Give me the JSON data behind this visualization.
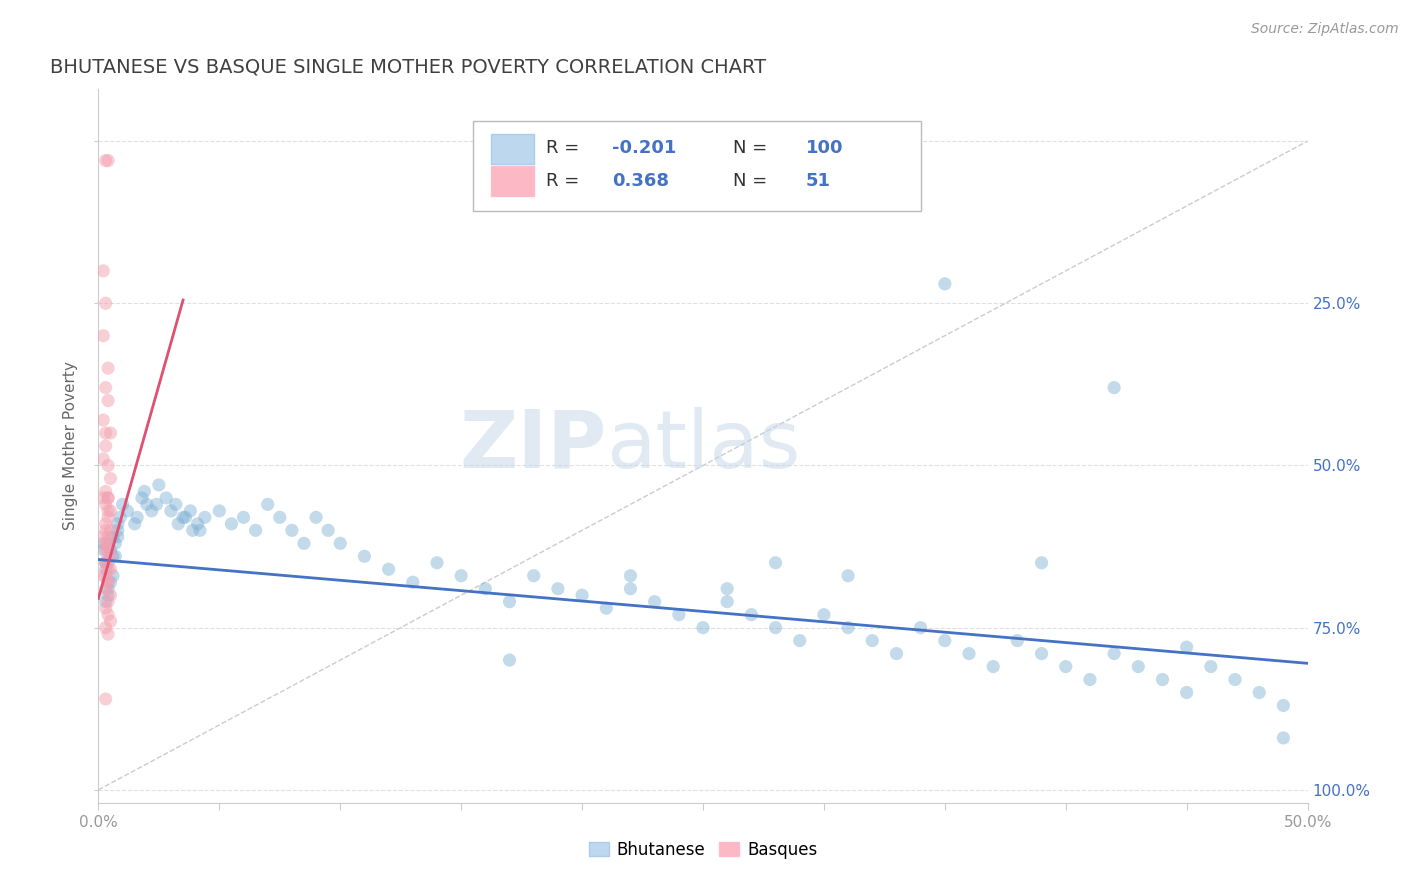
{
  "title": "BHUTANESE VS BASQUE SINGLE MOTHER POVERTY CORRELATION CHART",
  "source_text": "Source: ZipAtlas.com",
  "ylabel": "Single Mother Poverty",
  "x_tick_labels": [
    "0.0%",
    "",
    "",
    "",
    "",
    "",
    "",
    "",
    "",
    "",
    "50.0%"
  ],
  "y_tick_labels_right": [
    "100.0%",
    "75.0%",
    "50.0%",
    "25.0%"
  ],
  "xlim": [
    0.0,
    0.5
  ],
  "ylim": [
    -0.02,
    1.08
  ],
  "blue_R": -0.201,
  "blue_N": 100,
  "pink_R": 0.368,
  "pink_N": 51,
  "blue_color": "#7BAFD4",
  "pink_color": "#F4A0B0",
  "blue_line_color": "#4472C4",
  "pink_line_color": "#E05070",
  "ref_line_color": "#CCCCCC",
  "legend_box_blue_color": "#BDD7EE",
  "legend_box_pink_color": "#FCB9C5",
  "watermark_color": "#C5D5E8",
  "background_color": "#FFFFFF",
  "grid_color": "#DDDDDD",
  "title_color": "#404040",
  "axis_label_color": "#666666",
  "tick_label_color": "#999999",
  "right_tick_color": "#4472C4",
  "legend_text_color": "#333333",
  "legend_val_color": "#4472C4",
  "blue_scatter_x": [
    0.003,
    0.005,
    0.002,
    0.004,
    0.006,
    0.003,
    0.004,
    0.007,
    0.003,
    0.002,
    0.008,
    0.005,
    0.006,
    0.004,
    0.009,
    0.007,
    0.008,
    0.006,
    0.01,
    0.008,
    0.012,
    0.015,
    0.018,
    0.02,
    0.016,
    0.019,
    0.022,
    0.025,
    0.028,
    0.024,
    0.03,
    0.033,
    0.036,
    0.039,
    0.032,
    0.035,
    0.038,
    0.041,
    0.044,
    0.042,
    0.05,
    0.055,
    0.06,
    0.065,
    0.07,
    0.075,
    0.08,
    0.085,
    0.09,
    0.095,
    0.1,
    0.11,
    0.12,
    0.13,
    0.14,
    0.15,
    0.16,
    0.17,
    0.18,
    0.19,
    0.2,
    0.21,
    0.22,
    0.23,
    0.24,
    0.25,
    0.26,
    0.27,
    0.28,
    0.29,
    0.3,
    0.31,
    0.32,
    0.33,
    0.34,
    0.35,
    0.36,
    0.37,
    0.38,
    0.39,
    0.4,
    0.41,
    0.42,
    0.43,
    0.44,
    0.45,
    0.46,
    0.47,
    0.48,
    0.49,
    0.35,
    0.42,
    0.28,
    0.31,
    0.26,
    0.39,
    0.22,
    0.45,
    0.17,
    0.49
  ],
  "blue_scatter_y": [
    0.35,
    0.32,
    0.37,
    0.3,
    0.33,
    0.34,
    0.31,
    0.36,
    0.29,
    0.38,
    0.4,
    0.37,
    0.39,
    0.35,
    0.42,
    0.38,
    0.41,
    0.36,
    0.44,
    0.39,
    0.43,
    0.41,
    0.45,
    0.44,
    0.42,
    0.46,
    0.43,
    0.47,
    0.45,
    0.44,
    0.43,
    0.41,
    0.42,
    0.4,
    0.44,
    0.42,
    0.43,
    0.41,
    0.42,
    0.4,
    0.43,
    0.41,
    0.42,
    0.4,
    0.44,
    0.42,
    0.4,
    0.38,
    0.42,
    0.4,
    0.38,
    0.36,
    0.34,
    0.32,
    0.35,
    0.33,
    0.31,
    0.29,
    0.33,
    0.31,
    0.3,
    0.28,
    0.31,
    0.29,
    0.27,
    0.25,
    0.29,
    0.27,
    0.25,
    0.23,
    0.27,
    0.25,
    0.23,
    0.21,
    0.25,
    0.23,
    0.21,
    0.19,
    0.23,
    0.21,
    0.19,
    0.17,
    0.21,
    0.19,
    0.17,
    0.15,
    0.19,
    0.17,
    0.15,
    0.13,
    0.78,
    0.62,
    0.35,
    0.33,
    0.31,
    0.35,
    0.33,
    0.22,
    0.2,
    0.08
  ],
  "pink_scatter_x": [
    0.003,
    0.004,
    0.002,
    0.003,
    0.002,
    0.004,
    0.003,
    0.004,
    0.002,
    0.003,
    0.003,
    0.002,
    0.004,
    0.005,
    0.003,
    0.004,
    0.003,
    0.005,
    0.004,
    0.003,
    0.002,
    0.004,
    0.003,
    0.005,
    0.004,
    0.003,
    0.005,
    0.004,
    0.003,
    0.004,
    0.002,
    0.004,
    0.003,
    0.005,
    0.004,
    0.003,
    0.004,
    0.005,
    0.003,
    0.004,
    0.002,
    0.004,
    0.003,
    0.005,
    0.004,
    0.003,
    0.004,
    0.005,
    0.003,
    0.004,
    0.003
  ],
  "pink_scatter_y": [
    0.97,
    0.97,
    0.8,
    0.75,
    0.7,
    0.65,
    0.62,
    0.6,
    0.57,
    0.55,
    0.53,
    0.51,
    0.5,
    0.48,
    0.46,
    0.45,
    0.44,
    0.43,
    0.42,
    0.4,
    0.39,
    0.38,
    0.37,
    0.55,
    0.36,
    0.35,
    0.34,
    0.45,
    0.33,
    0.32,
    0.45,
    0.43,
    0.41,
    0.4,
    0.39,
    0.38,
    0.37,
    0.36,
    0.35,
    0.34,
    0.33,
    0.32,
    0.31,
    0.3,
    0.29,
    0.28,
    0.27,
    0.26,
    0.25,
    0.24,
    0.14
  ],
  "blue_trend_x": [
    0.0,
    0.5
  ],
  "blue_trend_y": [
    0.355,
    0.195
  ],
  "pink_trend_x": [
    0.0,
    0.035
  ],
  "pink_trend_y": [
    0.295,
    0.755
  ]
}
